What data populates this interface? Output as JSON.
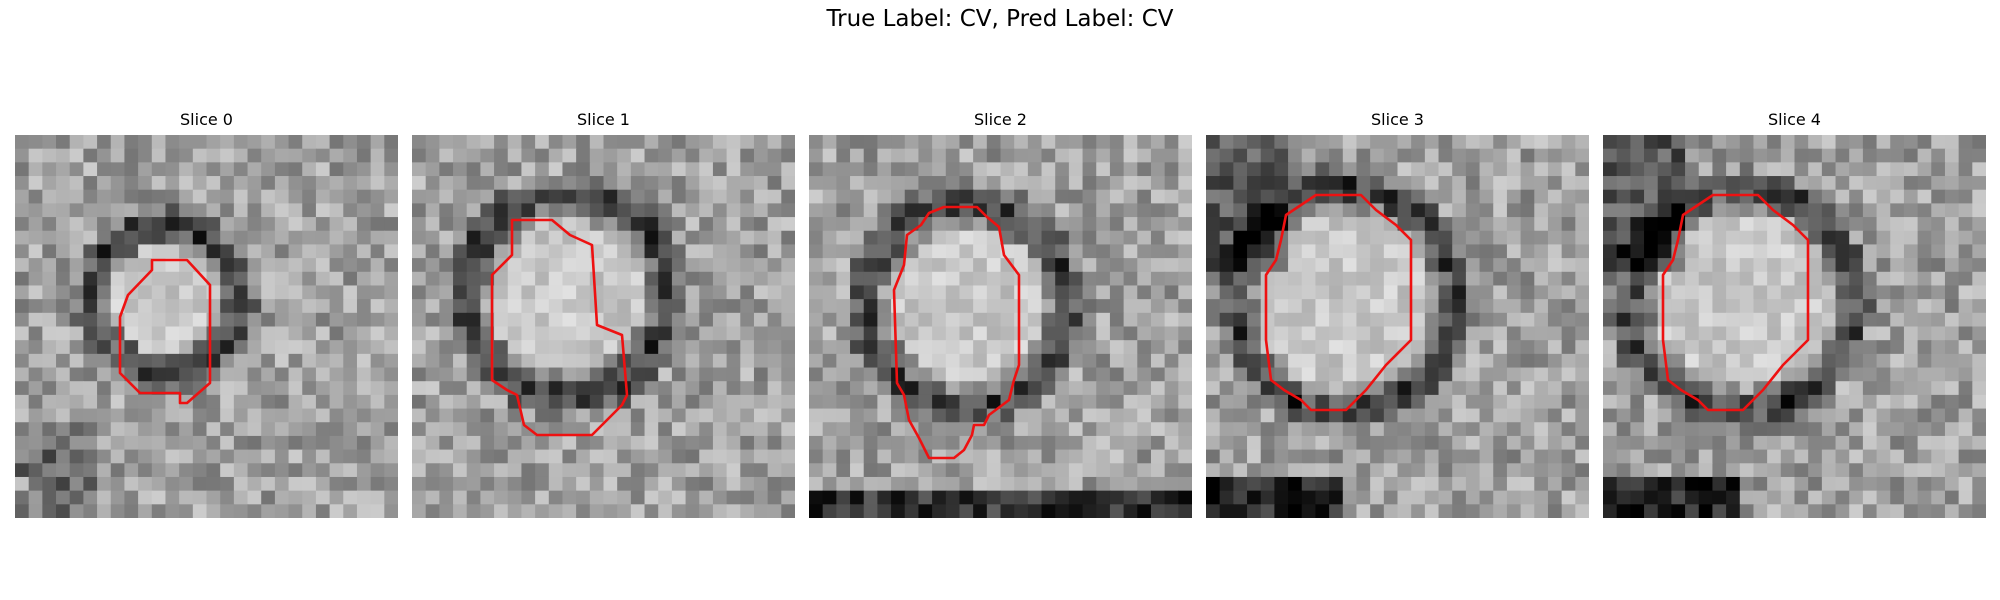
{
  "figure": {
    "title": "True Label: CV, Pred Label: CV"
  },
  "panels": [
    {
      "title": "Slice 0"
    },
    {
      "title": "Slice 1"
    },
    {
      "title": "Slice 2"
    },
    {
      "title": "Slice 3"
    },
    {
      "title": "Slice 4"
    }
  ],
  "colors": {
    "contour": "#ee1111"
  }
}
